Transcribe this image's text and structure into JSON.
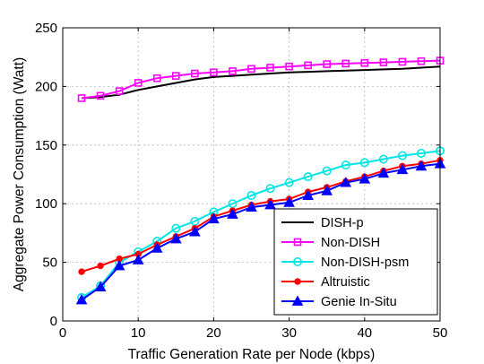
{
  "chart_data": {
    "type": "line",
    "title": "",
    "xlabel": "Traffic Generation Rate per Node (kbps)",
    "ylabel": "Aggregate Power Consumption (Watt)",
    "xlim": [
      0,
      50
    ],
    "ylim": [
      0,
      250
    ],
    "xticks": [
      0,
      10,
      20,
      30,
      40,
      50
    ],
    "yticks": [
      0,
      50,
      100,
      150,
      200,
      250
    ],
    "grid": true,
    "legend_position": "bottom-right",
    "series": [
      {
        "name": "DISH-p",
        "color": "#000000",
        "marker": "none",
        "x": [
          2.5,
          5,
          7.5,
          10,
          12.5,
          15,
          17.5,
          20,
          22.5,
          25,
          27.5,
          30,
          32.5,
          35,
          37.5,
          40,
          42.5,
          45,
          47.5,
          50
        ],
        "y": [
          190,
          191,
          193,
          197,
          200,
          203,
          206,
          208,
          209,
          210,
          211,
          212,
          212.5,
          213,
          213.5,
          214,
          214.5,
          215,
          216,
          217
        ]
      },
      {
        "name": "Non-DISH",
        "color": "#ff00ff",
        "marker": "square",
        "x": [
          2.5,
          5,
          7.5,
          10,
          12.5,
          15,
          17.5,
          20,
          22.5,
          25,
          27.5,
          30,
          32.5,
          35,
          37.5,
          40,
          42.5,
          45,
          47.5,
          50
        ],
        "y": [
          190,
          192,
          196,
          203,
          207,
          209,
          211,
          212,
          213,
          215,
          216,
          217,
          218,
          219,
          219.5,
          220,
          220.5,
          221,
          221.5,
          222
        ]
      },
      {
        "name": "Non-DISH-psm",
        "color": "#00e5e5",
        "marker": "circle-open",
        "x": [
          2.5,
          5,
          7.5,
          10,
          12.5,
          15,
          17.5,
          20,
          22.5,
          25,
          27.5,
          30,
          32.5,
          35,
          37.5,
          40,
          42.5,
          45,
          47.5,
          50
        ],
        "y": [
          20,
          30,
          50,
          59,
          68,
          79,
          85,
          93,
          100,
          107,
          113,
          118,
          123,
          128,
          133,
          135,
          138,
          141,
          143,
          145
        ]
      },
      {
        "name": "Altruistic",
        "color": "#ff0000",
        "marker": "dot",
        "x": [
          2.5,
          5,
          7.5,
          10,
          12.5,
          15,
          17.5,
          20,
          22.5,
          25,
          27.5,
          30,
          32.5,
          35,
          37.5,
          40,
          42.5,
          45,
          47.5,
          50
        ],
        "y": [
          42,
          47,
          53,
          57,
          65,
          72,
          79,
          89,
          94,
          99,
          102,
          104,
          110,
          114,
          119,
          123,
          128,
          132,
          134,
          137
        ]
      },
      {
        "name": "Genie In-Situ",
        "color": "#0000ff",
        "marker": "triangle",
        "x": [
          2.5,
          5,
          7.5,
          10,
          12.5,
          15,
          17.5,
          20,
          22.5,
          25,
          27.5,
          30,
          32.5,
          35,
          37.5,
          40,
          42.5,
          45,
          47.5,
          50
        ],
        "y": [
          18,
          29,
          47,
          52,
          62,
          70,
          76,
          87,
          91,
          97,
          99,
          101,
          107,
          111,
          118,
          121,
          126,
          129,
          132,
          134
        ]
      }
    ]
  }
}
